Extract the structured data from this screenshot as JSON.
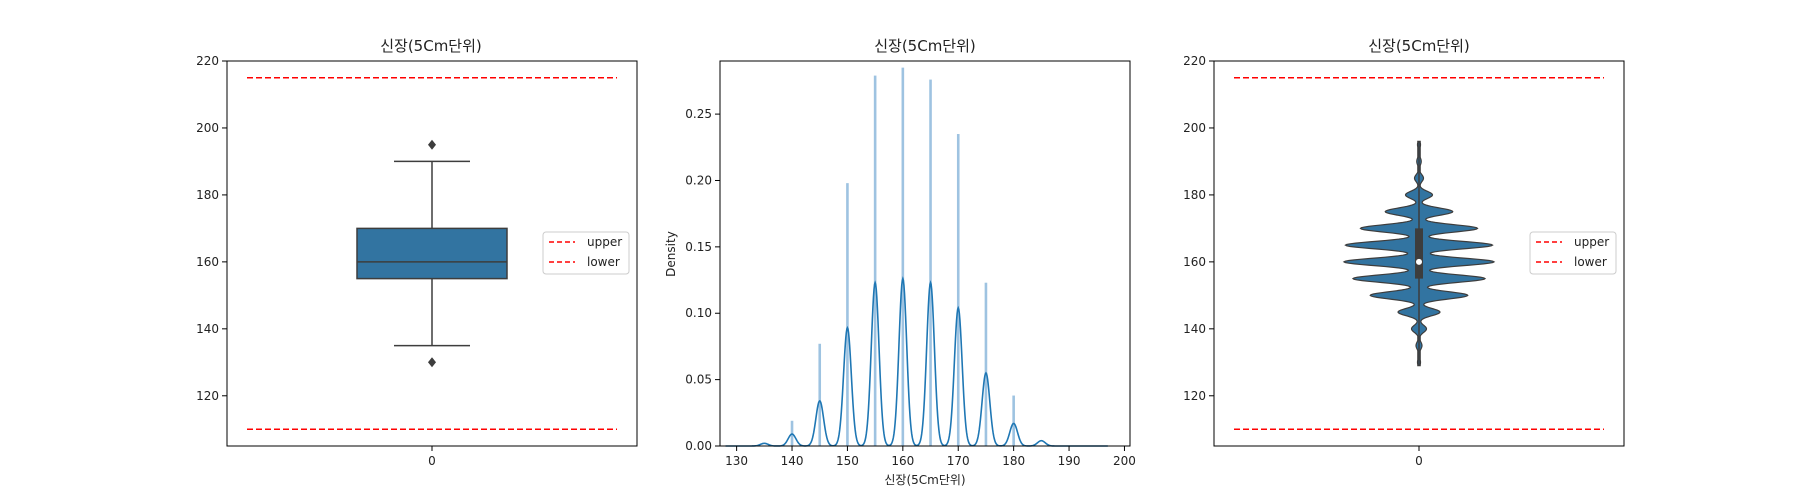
{
  "chart_data": [
    {
      "type": "box",
      "title": "신장(5Cm단위)",
      "xlabel": "",
      "ylabel": "",
      "x_ticks": [
        "0"
      ],
      "ylim": [
        105,
        220
      ],
      "y_ticks": [
        120,
        140,
        160,
        180,
        200,
        220
      ],
      "box": {
        "q1": 155,
        "median": 160,
        "q3": 170,
        "whisker_low": 135,
        "whisker_high": 190,
        "outliers": [
          130,
          195
        ]
      },
      "reference_lines": [
        {
          "name": "upper",
          "value": 215,
          "color": "#ff0000",
          "style": "dashed"
        },
        {
          "name": "lower",
          "value": 110,
          "color": "#ff0000",
          "style": "dashed"
        }
      ],
      "legend": {
        "position": "right",
        "entries": [
          "upper",
          "lower"
        ]
      },
      "box_color": "#3274a1",
      "grid": false
    },
    {
      "type": "histogram+kde",
      "title": "신장(5Cm단위)",
      "xlabel": "신장(5Cm단위)",
      "ylabel": "Density",
      "xlim": [
        127,
        201
      ],
      "ylim": [
        0,
        0.29
      ],
      "x_ticks": [
        130,
        140,
        150,
        160,
        170,
        180,
        190,
        200
      ],
      "y_ticks": [
        "0.00",
        "0.05",
        "0.10",
        "0.15",
        "0.20",
        "0.25"
      ],
      "histogram": {
        "x": [
          140,
          145,
          150,
          155,
          160,
          165,
          170,
          175,
          180
        ],
        "density": [
          0.019,
          0.077,
          0.198,
          0.279,
          0.285,
          0.276,
          0.235,
          0.123,
          0.038
        ]
      },
      "kde_peaks": {
        "x": [
          135,
          140,
          145,
          150,
          155,
          160,
          165,
          170,
          175,
          180,
          185
        ],
        "density": [
          0.002,
          0.009,
          0.034,
          0.089,
          0.123,
          0.126,
          0.123,
          0.104,
          0.055,
          0.017,
          0.004
        ]
      },
      "kde_range": [
        128,
        197
      ],
      "hist_color": "#9ec3e1",
      "kde_color": "#1f77b4",
      "grid": false
    },
    {
      "type": "violin",
      "title": "신장(5Cm단위)",
      "xlabel": "",
      "ylabel": "",
      "x_ticks": [
        "0"
      ],
      "ylim": [
        105,
        220
      ],
      "y_ticks": [
        120,
        140,
        160,
        180,
        200,
        220
      ],
      "distribution": {
        "y": [
          130,
          135,
          140,
          145,
          150,
          155,
          160,
          165,
          170,
          175,
          180,
          185,
          190,
          195
        ],
        "density": [
          0.02,
          0.04,
          0.1,
          0.28,
          0.65,
          0.88,
          1.0,
          0.98,
          0.78,
          0.45,
          0.18,
          0.06,
          0.03,
          0.02
        ]
      },
      "range": [
        129,
        196
      ],
      "box": {
        "q1": 155,
        "median": 160,
        "q3": 170
      },
      "reference_lines": [
        {
          "name": "upper",
          "value": 215,
          "color": "#ff0000",
          "style": "dashed"
        },
        {
          "name": "lower",
          "value": 110,
          "color": "#ff0000",
          "style": "dashed"
        }
      ],
      "legend": {
        "position": "right",
        "entries": [
          "upper",
          "lower"
        ]
      },
      "violin_color": "#3274a1",
      "grid": false
    }
  ]
}
